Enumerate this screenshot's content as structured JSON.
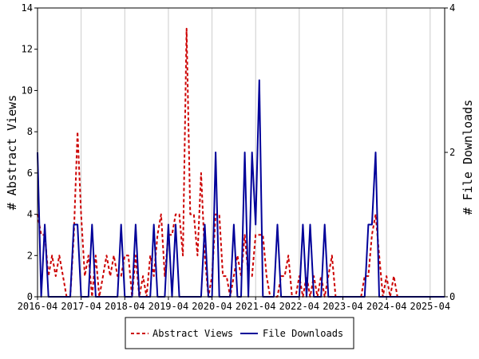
{
  "chart_data": {
    "type": "line",
    "xlabel": "",
    "ylabel": "# Abstract Views",
    "y2label": "# File Downloads",
    "ylim": [
      0,
      14
    ],
    "y2lim": [
      0,
      4
    ],
    "yticks": [
      0,
      2,
      4,
      6,
      8,
      10,
      12,
      14
    ],
    "y2ticks": [
      0,
      2,
      4
    ],
    "x_start": "2016-04",
    "x_end": "2025-08",
    "xticks": [
      "2016-04",
      "2017-04",
      "2018-04",
      "2019-04",
      "2020-04",
      "2021-04",
      "2022-04",
      "2023-04",
      "2024-04",
      "2025-04"
    ],
    "legend": {
      "placement": "bottom-center"
    },
    "series": [
      {
        "name": "Abstract Views",
        "axis": "left",
        "color": "#cc0000",
        "dash": true,
        "points": [
          [
            "2016-04",
            4
          ],
          [
            "2016-05",
            3
          ],
          [
            "2016-06",
            3
          ],
          [
            "2016-07",
            1
          ],
          [
            "2016-08",
            2
          ],
          [
            "2016-09",
            1
          ],
          [
            "2016-10",
            2
          ],
          [
            "2016-11",
            1
          ],
          [
            "2016-12",
            0
          ],
          [
            "2017-01",
            0
          ],
          [
            "2017-02",
            3
          ],
          [
            "2017-03",
            8
          ],
          [
            "2017-04",
            4
          ],
          [
            "2017-05",
            1
          ],
          [
            "2017-06",
            2
          ],
          [
            "2017-07",
            0
          ],
          [
            "2017-08",
            2
          ],
          [
            "2017-09",
            0
          ],
          [
            "2017-10",
            1
          ],
          [
            "2017-11",
            2
          ],
          [
            "2017-12",
            1
          ],
          [
            "2018-01",
            2
          ],
          [
            "2018-02",
            1
          ],
          [
            "2018-03",
            1
          ],
          [
            "2018-04",
            2
          ],
          [
            "2018-05",
            2
          ],
          [
            "2018-06",
            0
          ],
          [
            "2018-07",
            2
          ],
          [
            "2018-08",
            0
          ],
          [
            "2018-09",
            1
          ],
          [
            "2018-10",
            0
          ],
          [
            "2018-11",
            2
          ],
          [
            "2018-12",
            1
          ],
          [
            "2019-01",
            3
          ],
          [
            "2019-02",
            4
          ],
          [
            "2019-03",
            1
          ],
          [
            "2019-04",
            3
          ],
          [
            "2019-05",
            3
          ],
          [
            "2019-06",
            4
          ],
          [
            "2019-07",
            4
          ],
          [
            "2019-08",
            2
          ],
          [
            "2019-09",
            13
          ],
          [
            "2019-10",
            4
          ],
          [
            "2019-11",
            4
          ],
          [
            "2019-12",
            2
          ],
          [
            "2020-01",
            6
          ],
          [
            "2020-02",
            2
          ],
          [
            "2020-03",
            0
          ],
          [
            "2020-04",
            1
          ],
          [
            "2020-05",
            4
          ],
          [
            "2020-06",
            4
          ],
          [
            "2020-07",
            1
          ],
          [
            "2020-08",
            1
          ],
          [
            "2020-09",
            0
          ],
          [
            "2020-10",
            1
          ],
          [
            "2020-11",
            2
          ],
          [
            "2020-12",
            1
          ],
          [
            "2021-01",
            3
          ],
          [
            "2021-02",
            1
          ],
          [
            "2021-03",
            1
          ],
          [
            "2021-04",
            3
          ],
          [
            "2021-05",
            3
          ],
          [
            "2021-06",
            3
          ],
          [
            "2021-07",
            1
          ],
          [
            "2021-08",
            0
          ],
          [
            "2021-09",
            0
          ],
          [
            "2021-10",
            0
          ],
          [
            "2021-11",
            1
          ],
          [
            "2021-12",
            1
          ],
          [
            "2022-01",
            2
          ],
          [
            "2022-02",
            0
          ],
          [
            "2022-03",
            0
          ],
          [
            "2022-04",
            1
          ],
          [
            "2022-05",
            0
          ],
          [
            "2022-06",
            1
          ],
          [
            "2022-07",
            0
          ],
          [
            "2022-08",
            1
          ],
          [
            "2022-09",
            0
          ],
          [
            "2022-10",
            1
          ],
          [
            "2022-11",
            0
          ],
          [
            "2022-12",
            1
          ],
          [
            "2023-01",
            2
          ],
          [
            "2023-02",
            0
          ],
          [
            "2023-03",
            0
          ],
          [
            "2023-04",
            0
          ],
          [
            "2023-05",
            0
          ],
          [
            "2023-06",
            0
          ],
          [
            "2023-07",
            0
          ],
          [
            "2023-08",
            0
          ],
          [
            "2023-09",
            0
          ],
          [
            "2023-10",
            1
          ],
          [
            "2023-11",
            1
          ],
          [
            "2023-12",
            3
          ],
          [
            "2024-01",
            4
          ],
          [
            "2024-02",
            2
          ],
          [
            "2024-03",
            0
          ],
          [
            "2024-04",
            1
          ],
          [
            "2024-05",
            0
          ],
          [
            "2024-06",
            1
          ],
          [
            "2024-07",
            0
          ],
          [
            "2024-08",
            0
          ],
          [
            "2024-09",
            0
          ],
          [
            "2024-10",
            0
          ],
          [
            "2024-11",
            0
          ],
          [
            "2024-12",
            0
          ],
          [
            "2025-01",
            0
          ],
          [
            "2025-02",
            0
          ],
          [
            "2025-03",
            0
          ],
          [
            "2025-04",
            0
          ],
          [
            "2025-05",
            0
          ],
          [
            "2025-06",
            0
          ],
          [
            "2025-07",
            0
          ],
          [
            "2025-08",
            0
          ]
        ]
      },
      {
        "name": "File Downloads",
        "axis": "right",
        "color": "#000099",
        "dash": false,
        "points": [
          [
            "2016-04",
            2
          ],
          [
            "2016-05",
            0
          ],
          [
            "2016-06",
            1
          ],
          [
            "2016-07",
            0
          ],
          [
            "2016-08",
            0
          ],
          [
            "2016-09",
            0
          ],
          [
            "2016-10",
            0
          ],
          [
            "2016-11",
            0
          ],
          [
            "2016-12",
            0
          ],
          [
            "2017-01",
            0
          ],
          [
            "2017-02",
            1
          ],
          [
            "2017-03",
            1
          ],
          [
            "2017-04",
            0
          ],
          [
            "2017-05",
            0
          ],
          [
            "2017-06",
            0
          ],
          [
            "2017-07",
            1
          ],
          [
            "2017-08",
            0
          ],
          [
            "2017-09",
            0
          ],
          [
            "2017-10",
            0
          ],
          [
            "2017-11",
            0
          ],
          [
            "2017-12",
            0
          ],
          [
            "2018-01",
            0
          ],
          [
            "2018-02",
            0
          ],
          [
            "2018-03",
            1
          ],
          [
            "2018-04",
            0
          ],
          [
            "2018-05",
            0
          ],
          [
            "2018-06",
            0
          ],
          [
            "2018-07",
            1
          ],
          [
            "2018-08",
            0
          ],
          [
            "2018-09",
            0
          ],
          [
            "2018-10",
            0
          ],
          [
            "2018-11",
            0
          ],
          [
            "2018-12",
            1
          ],
          [
            "2019-01",
            0
          ],
          [
            "2019-02",
            0
          ],
          [
            "2019-03",
            0
          ],
          [
            "2019-04",
            1
          ],
          [
            "2019-05",
            0
          ],
          [
            "2019-06",
            1
          ],
          [
            "2019-07",
            0
          ],
          [
            "2019-08",
            0
          ],
          [
            "2019-09",
            0
          ],
          [
            "2019-10",
            0
          ],
          [
            "2019-11",
            0
          ],
          [
            "2019-12",
            0
          ],
          [
            "2020-01",
            0
          ],
          [
            "2020-02",
            1
          ],
          [
            "2020-03",
            0
          ],
          [
            "2020-04",
            0
          ],
          [
            "2020-05",
            2
          ],
          [
            "2020-06",
            0
          ],
          [
            "2020-07",
            0
          ],
          [
            "2020-08",
            0
          ],
          [
            "2020-09",
            0
          ],
          [
            "2020-10",
            1
          ],
          [
            "2020-11",
            0
          ],
          [
            "2020-12",
            0
          ],
          [
            "2021-01",
            2
          ],
          [
            "2021-02",
            0
          ],
          [
            "2021-03",
            2
          ],
          [
            "2021-04",
            1
          ],
          [
            "2021-05",
            3
          ],
          [
            "2021-06",
            0
          ],
          [
            "2021-07",
            0
          ],
          [
            "2021-08",
            0
          ],
          [
            "2021-09",
            0
          ],
          [
            "2021-10",
            1
          ],
          [
            "2021-11",
            0
          ],
          [
            "2021-12",
            0
          ],
          [
            "2022-01",
            0
          ],
          [
            "2022-02",
            0
          ],
          [
            "2022-03",
            0
          ],
          [
            "2022-04",
            0
          ],
          [
            "2022-05",
            1
          ],
          [
            "2022-06",
            0
          ],
          [
            "2022-07",
            1
          ],
          [
            "2022-08",
            0
          ],
          [
            "2022-09",
            0
          ],
          [
            "2022-10",
            0
          ],
          [
            "2022-11",
            1
          ],
          [
            "2022-12",
            0
          ],
          [
            "2023-01",
            0
          ],
          [
            "2023-02",
            0
          ],
          [
            "2023-03",
            0
          ],
          [
            "2023-04",
            0
          ],
          [
            "2023-05",
            0
          ],
          [
            "2023-06",
            0
          ],
          [
            "2023-07",
            0
          ],
          [
            "2023-08",
            0
          ],
          [
            "2023-09",
            0
          ],
          [
            "2023-10",
            0
          ],
          [
            "2023-11",
            1
          ],
          [
            "2023-12",
            1
          ],
          [
            "2024-01",
            2
          ],
          [
            "2024-02",
            0
          ],
          [
            "2024-03",
            0
          ],
          [
            "2024-04",
            0
          ],
          [
            "2024-05",
            0
          ],
          [
            "2024-06",
            0
          ],
          [
            "2024-07",
            0
          ],
          [
            "2024-08",
            0
          ],
          [
            "2024-09",
            0
          ],
          [
            "2024-10",
            0
          ],
          [
            "2024-11",
            0
          ],
          [
            "2024-12",
            0
          ],
          [
            "2025-01",
            0
          ],
          [
            "2025-02",
            0
          ],
          [
            "2025-03",
            0
          ],
          [
            "2025-04",
            0
          ],
          [
            "2025-05",
            0
          ],
          [
            "2025-06",
            0
          ],
          [
            "2025-07",
            0
          ],
          [
            "2025-08",
            0
          ]
        ]
      }
    ]
  }
}
